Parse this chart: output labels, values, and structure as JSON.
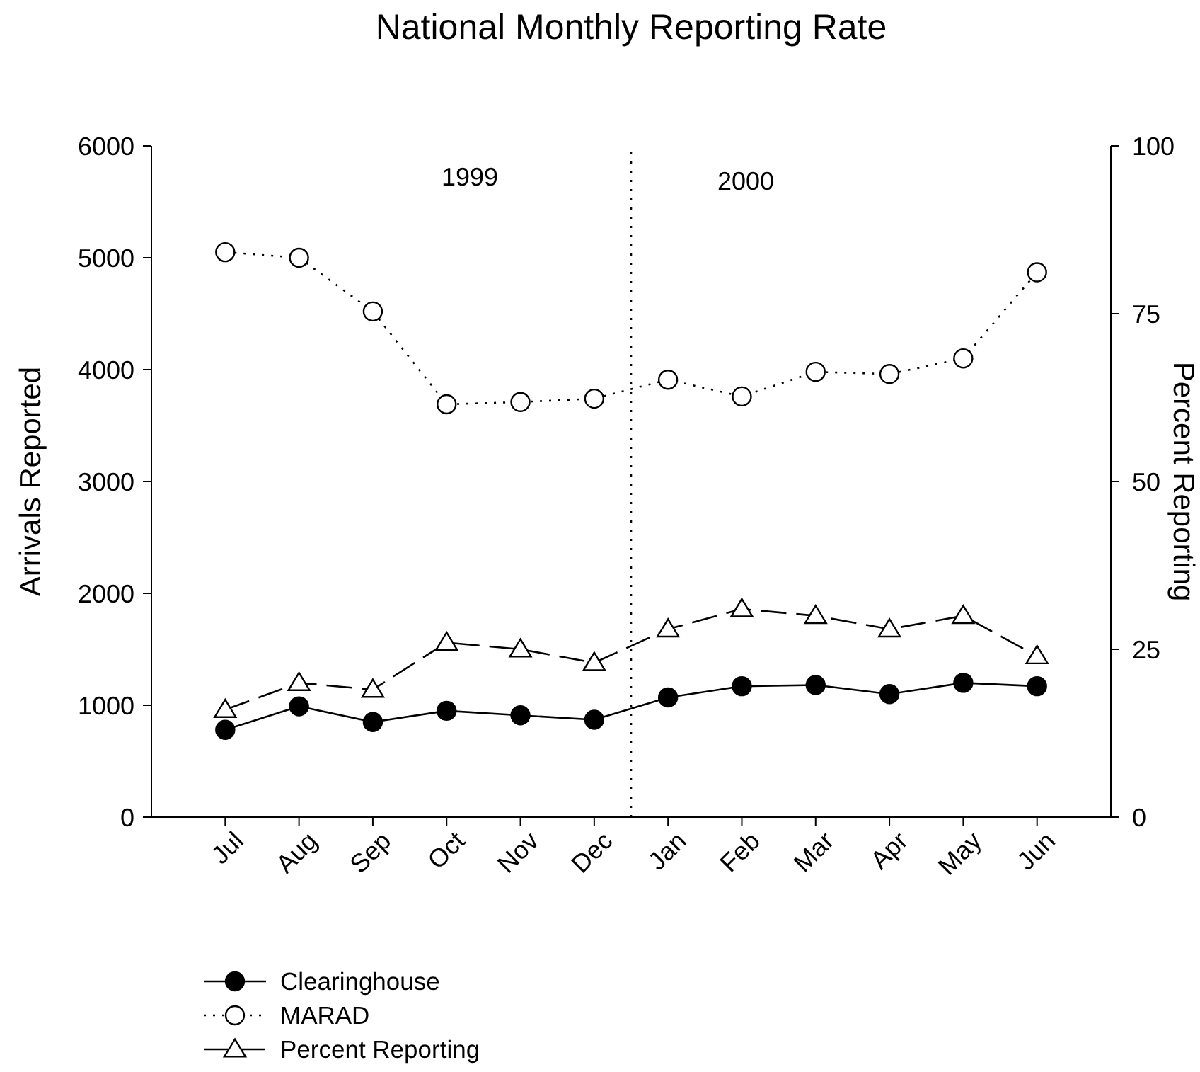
{
  "chart_data": {
    "type": "line",
    "title": "National Monthly Reporting Rate",
    "ylabel": "Arrivals Reported",
    "y2label": "Percent Reporting",
    "categories": [
      "Jul",
      "Aug",
      "Sep",
      "Oct",
      "Nov",
      "Dec",
      "Jan",
      "Feb",
      "Mar",
      "Apr",
      "May",
      "Jun"
    ],
    "series": [
      {
        "name": "Clearinghouse",
        "color": "#000000",
        "marker": "circle",
        "line_style": "solid",
        "values": [
          780,
          990,
          850,
          950,
          910,
          870,
          1070,
          1170,
          1180,
          1100,
          1200,
          1170
        ]
      },
      {
        "name": "MARAD",
        "color": "#000000",
        "marker": "circle",
        "line_style": "dotted",
        "values": [
          5050,
          5000,
          4520,
          3690,
          3710,
          3740,
          3910,
          3760,
          3980,
          3960,
          4100,
          4870
        ]
      },
      {
        "name": "Percent Reporting",
        "color": "#000000",
        "marker": "triangle",
        "line_style": "dashed",
        "axis": "y2",
        "values": [
          16,
          20,
          19,
          26,
          25,
          23,
          28,
          31,
          30,
          28,
          30,
          24
        ]
      }
    ],
    "ylim": [
      0,
      6000
    ],
    "yticks": [
      0,
      1000,
      2000,
      3000,
      4000,
      5000,
      6000
    ],
    "y2lim": [
      0,
      100
    ],
    "y2ticks": [
      0,
      25,
      50,
      75,
      100
    ],
    "annotations": [
      "1999",
      "2000"
    ],
    "legend": "bottom left"
  }
}
